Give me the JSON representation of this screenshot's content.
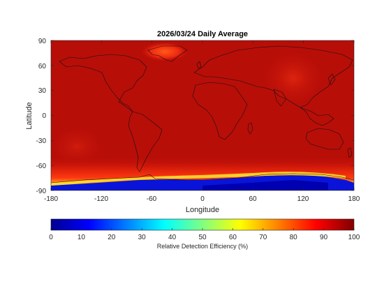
{
  "chart_data": {
    "type": "heatmap",
    "title": "2026/03/24 Daily Average",
    "xlabel": "Longitude",
    "ylabel": "Latitude",
    "xlim": [
      -180,
      180
    ],
    "ylim": [
      -90,
      90
    ],
    "xticks": [
      "-180",
      "-120",
      "-60",
      "0",
      "60",
      "120",
      "180"
    ],
    "yticks": [
      "90",
      "60",
      "30",
      "0",
      "-30",
      "-60",
      "-90"
    ],
    "xtick_values": [
      -180,
      -120,
      -60,
      0,
      60,
      120,
      180
    ],
    "ytick_values": [
      90,
      60,
      30,
      0,
      -30,
      -60,
      -90
    ],
    "background_value": 97,
    "features": [
      {
        "region": "Greenland",
        "lon": -45,
        "lat": 72,
        "value": 82
      },
      {
        "region": "Central Asia",
        "lon": 90,
        "lat": 40,
        "value": 88
      },
      {
        "region": "Southern Ocean",
        "lat_start": -60,
        "value": 80
      },
      {
        "region": "Antarctica coast",
        "lat": -72,
        "value": 55
      },
      {
        "region": "Antarctica interior",
        "lat": -85,
        "value": 5
      }
    ],
    "colorbar": {
      "label": "Relative Detection Efficiency (%)",
      "range": [
        0,
        100
      ],
      "ticks": [
        "0",
        "10",
        "20",
        "30",
        "40",
        "50",
        "60",
        "70",
        "80",
        "90",
        "100"
      ],
      "colormap": "jet"
    }
  }
}
